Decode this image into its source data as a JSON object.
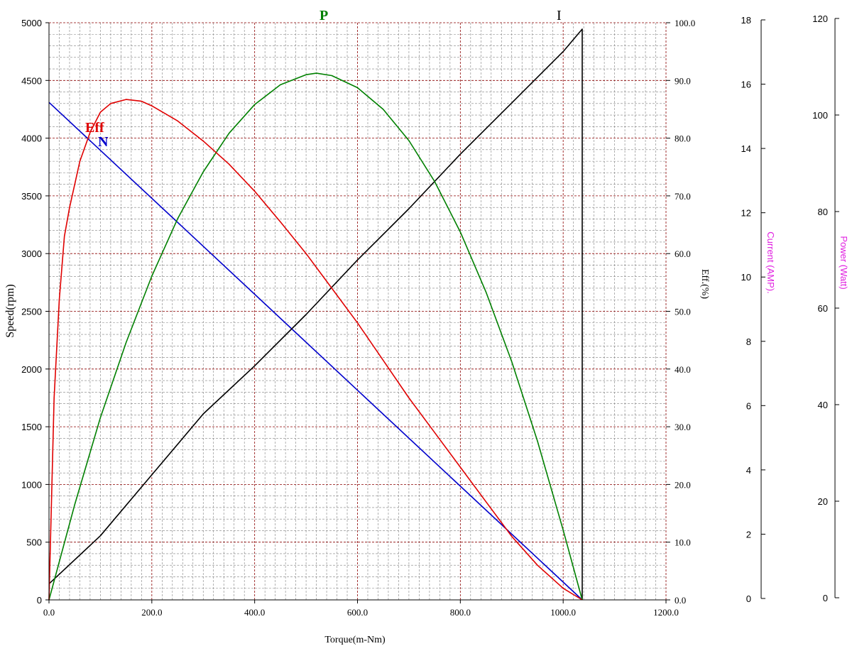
{
  "chart_data": {
    "type": "line",
    "xlabel": "Torque(m-Nm)",
    "xlim": [
      0,
      1200
    ],
    "x_ticks": [
      "0.0",
      "200.0",
      "400.0",
      "600.0",
      "800.0",
      "1000.0",
      "1200.0"
    ],
    "grid": true,
    "axes": {
      "speed": {
        "label": "Speed(rpm)",
        "range": [
          0,
          5000
        ],
        "ticks": [
          "0",
          "500",
          "1000",
          "1500",
          "2000",
          "2500",
          "3000",
          "3500",
          "4000",
          "4500",
          "5000"
        ]
      },
      "eff": {
        "label": "Eff.(%)",
        "range": [
          0,
          100
        ],
        "ticks": [
          "0.0",
          "10.0",
          "20.0",
          "30.0",
          "40.0",
          "50.0",
          "60.0",
          "70.0",
          "80.0",
          "90.0",
          "100.0"
        ]
      },
      "current": {
        "label": "Current (AMP).",
        "range": [
          0,
          18
        ],
        "ticks": [
          "0",
          "2",
          "4",
          "6",
          "8",
          "10",
          "12",
          "14",
          "16",
          "18"
        ]
      },
      "power": {
        "label": "Power (Watt)",
        "range": [
          0,
          120
        ],
        "ticks": [
          "0",
          "20",
          "40",
          "60",
          "80",
          "100",
          "120"
        ]
      }
    },
    "series": [
      {
        "name": "N",
        "axis": "speed",
        "color": "#0000cc",
        "x": [
          0,
          1037
        ],
        "y": [
          4310,
          0
        ]
      },
      {
        "name": "I",
        "axis": "current",
        "color": "#000000",
        "x": [
          0,
          100,
          200,
          300,
          400,
          500,
          600,
          700,
          800,
          900,
          1000,
          1037,
          1037
        ],
        "y": [
          0.5,
          2.0,
          3.9,
          5.8,
          7.3,
          8.9,
          10.6,
          12.2,
          13.9,
          15.5,
          17.1,
          17.8,
          0
        ]
      },
      {
        "name": "P",
        "axis": "power",
        "color": "#008000",
        "x": [
          0,
          50,
          100,
          150,
          200,
          250,
          300,
          350,
          400,
          450,
          500,
          520,
          550,
          600,
          650,
          700,
          750,
          800,
          850,
          900,
          950,
          1000,
          1037
        ],
        "y": [
          0,
          19.8,
          37.9,
          53.5,
          67.3,
          79.2,
          89.0,
          97.0,
          103.0,
          107.1,
          109.2,
          109.5,
          109.0,
          106.5,
          102.0,
          95.5,
          87.0,
          76.5,
          64.0,
          49.5,
          33.0,
          14.5,
          0
        ]
      },
      {
        "name": "Eff",
        "axis": "eff",
        "color": "#e00000",
        "x": [
          0,
          10,
          20,
          30,
          40,
          60,
          80,
          100,
          120,
          150,
          180,
          200,
          250,
          300,
          350,
          400,
          450,
          500,
          550,
          600,
          650,
          700,
          750,
          800,
          850,
          900,
          950,
          1000,
          1037
        ],
        "y": [
          0,
          35,
          52,
          63,
          68,
          76,
          81,
          84.5,
          86,
          86.7,
          86.4,
          85.6,
          83,
          79.5,
          75.5,
          70.8,
          65.5,
          60,
          54,
          48,
          41.5,
          35,
          29,
          23,
          17,
          11,
          6,
          2,
          0
        ]
      }
    ],
    "annotations": [
      {
        "text": "Eff",
        "color": "#e00000"
      },
      {
        "text": "N",
        "color": "#0000cc"
      },
      {
        "text": "P",
        "color": "#008000"
      },
      {
        "text": "I",
        "color": "#000000"
      }
    ],
    "colors": {
      "major_grid": "#8b0000",
      "minor_grid": "#808080",
      "axis_title_secondary": "#e020e0"
    }
  }
}
